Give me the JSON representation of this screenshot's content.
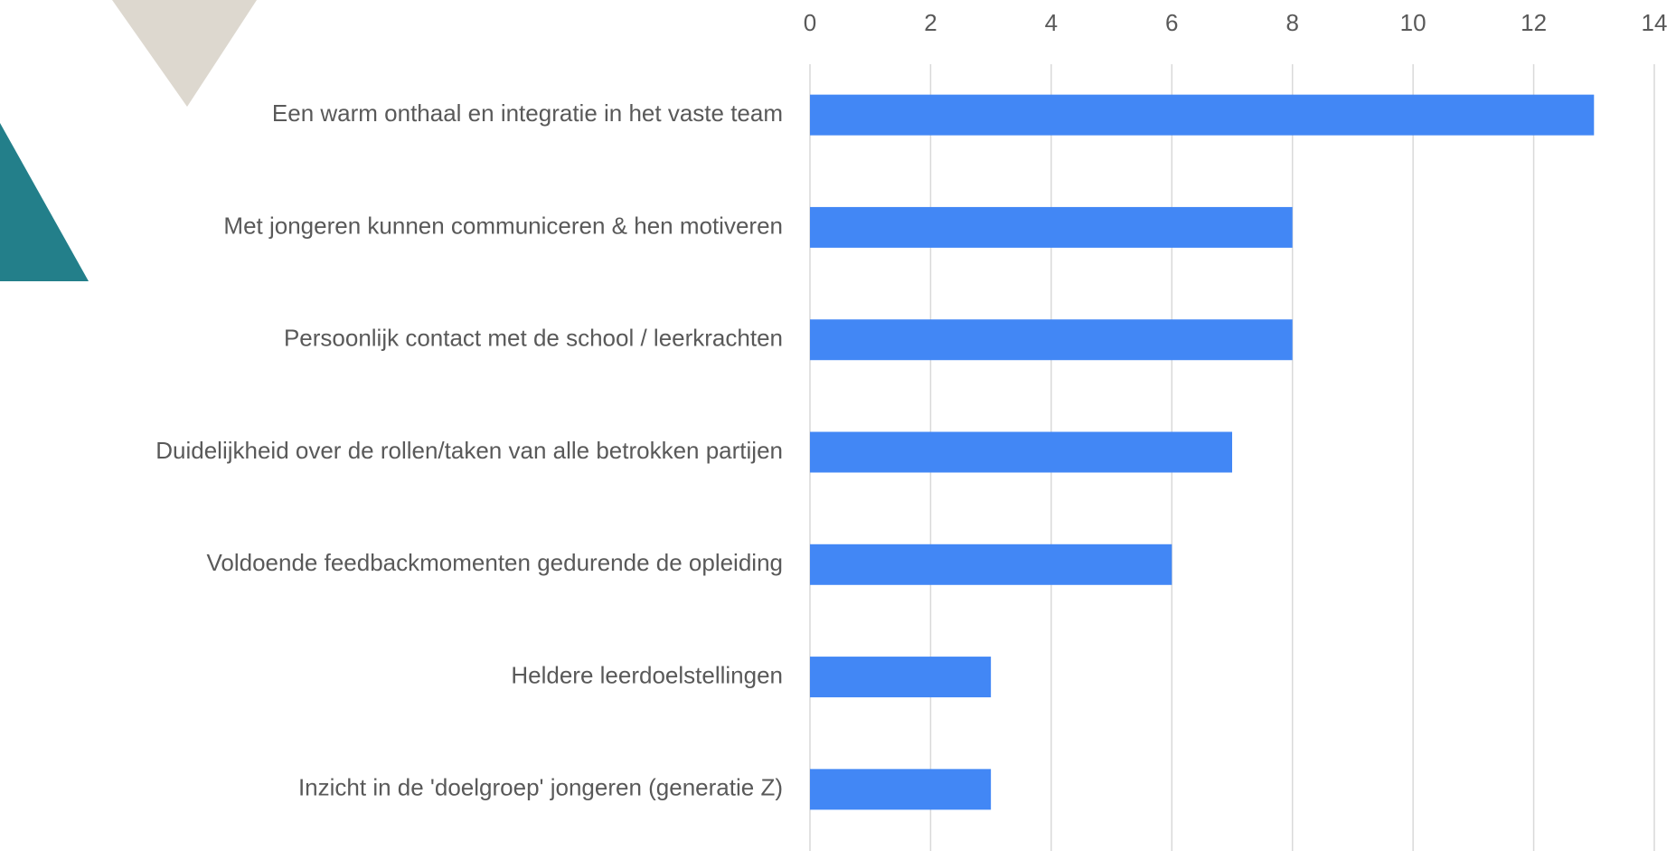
{
  "chart_data": {
    "type": "bar",
    "categories": [
      "Een warm onthaal en integratie in het vaste team",
      "Met jongeren kunnen communiceren & hen motiveren",
      "Persoonlijk contact met de school / leerkrachten",
      "Duidelijkheid over de rollen/taken van alle betrokken partijen",
      "Voldoende feedbackmomenten gedurende de opleiding",
      "Heldere leerdoelstellingen",
      "Inzicht in de 'doelgroep' jongeren (generatie Z)"
    ],
    "values": [
      13,
      8,
      8,
      7,
      6,
      3,
      3
    ],
    "color": "#4287f5",
    "xlim": [
      0,
      14
    ],
    "xticks": [
      0,
      2,
      4,
      6,
      8,
      10,
      12,
      14
    ],
    "grid": true
  }
}
